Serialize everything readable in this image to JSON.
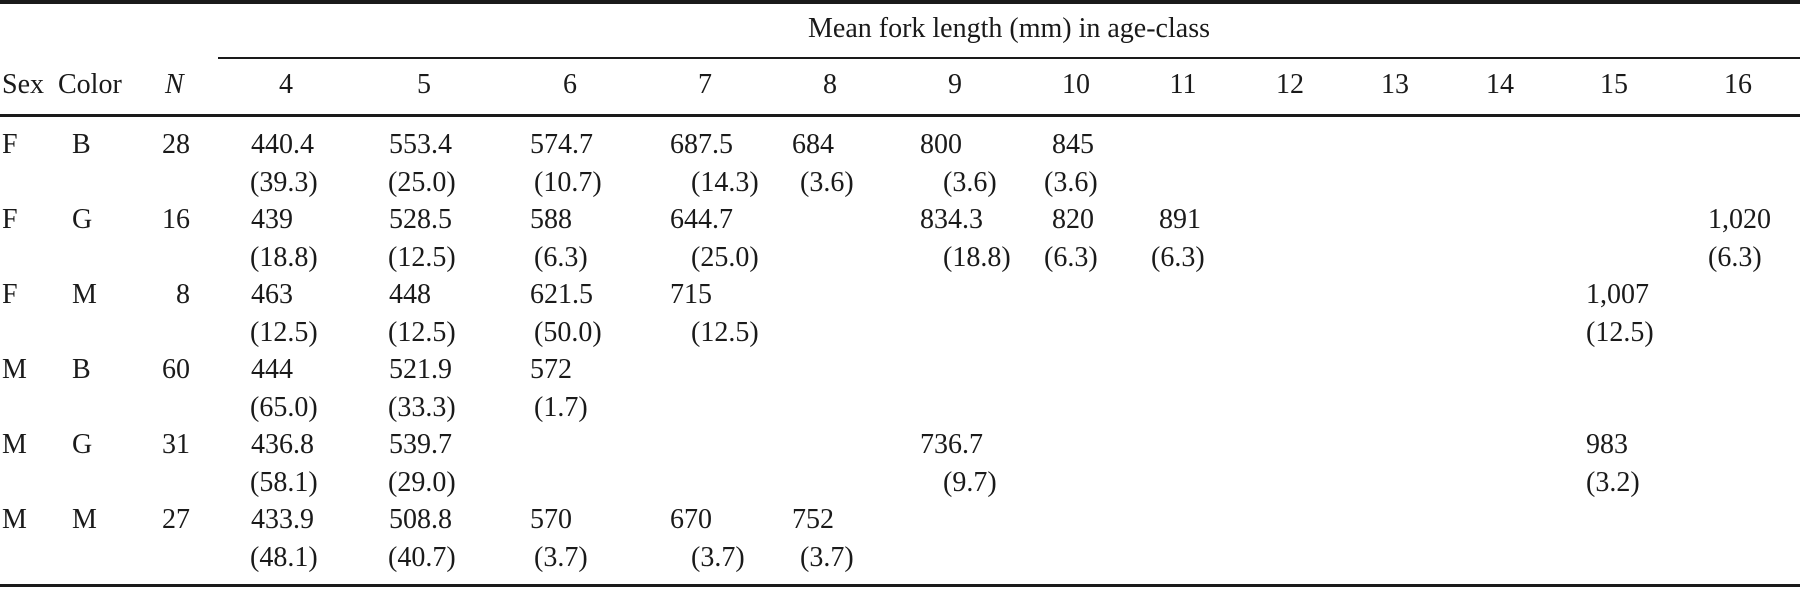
{
  "table": {
    "spanner": "Mean fork length (mm) in age-class",
    "headers": {
      "sex": "Sex",
      "color": "Color",
      "n": "N",
      "ages": [
        "4",
        "5",
        "6",
        "7",
        "8",
        "9",
        "10",
        "11",
        "12",
        "13",
        "14",
        "15",
        "16"
      ]
    },
    "rows": [
      {
        "sex": "F",
        "color": "B",
        "n": "28",
        "cells": [
          {
            "v": "440.4",
            "s": "(39.3)"
          },
          {
            "v": "553.4",
            "s": "(25.0)"
          },
          {
            "v": "574.7",
            "s": "(10.7)"
          },
          {
            "v": "687.5",
            "s": "(14.3)"
          },
          {
            "v": "684",
            "s": "(3.6)"
          },
          {
            "v": "800",
            "s": "(3.6)"
          },
          {
            "v": "845",
            "s": "(3.6)"
          },
          null,
          null,
          null,
          null,
          null,
          null
        ]
      },
      {
        "sex": "F",
        "color": "G",
        "n": "16",
        "cells": [
          {
            "v": "439",
            "s": "(18.8)"
          },
          {
            "v": "528.5",
            "s": "(12.5)"
          },
          {
            "v": "588",
            "s": "(6.3)"
          },
          {
            "v": "644.7",
            "s": "(25.0)"
          },
          null,
          {
            "v": "834.3",
            "s": "(18.8)"
          },
          {
            "v": "820",
            "s": "(6.3)"
          },
          {
            "v": "891",
            "s": "(6.3)"
          },
          null,
          null,
          null,
          null,
          {
            "v": "1,020",
            "s": "(6.3)"
          }
        ]
      },
      {
        "sex": "F",
        "color": "M",
        "n": "8",
        "cells": [
          {
            "v": "463",
            "s": "(12.5)"
          },
          {
            "v": "448",
            "s": "(12.5)"
          },
          {
            "v": "621.5",
            "s": "(50.0)"
          },
          {
            "v": "715",
            "s": "(12.5)"
          },
          null,
          null,
          null,
          null,
          null,
          null,
          null,
          {
            "v": "1,007",
            "s": "(12.5)"
          },
          null
        ]
      },
      {
        "sex": "M",
        "color": "B",
        "n": "60",
        "cells": [
          {
            "v": "444",
            "s": "(65.0)"
          },
          {
            "v": "521.9",
            "s": "(33.3)"
          },
          {
            "v": "572",
            "s": "(1.7)"
          },
          null,
          null,
          null,
          null,
          null,
          null,
          null,
          null,
          null,
          null
        ]
      },
      {
        "sex": "M",
        "color": "G",
        "n": "31",
        "cells": [
          {
            "v": "436.8",
            "s": "(58.1)"
          },
          {
            "v": "539.7",
            "s": "(29.0)"
          },
          null,
          null,
          null,
          {
            "v": "736.7",
            "s": "(9.7)"
          },
          null,
          null,
          null,
          null,
          null,
          {
            "v": "983",
            "s": "(3.2)"
          },
          null
        ]
      },
      {
        "sex": "M",
        "color": "M",
        "n": "27",
        "cells": [
          {
            "v": "433.9",
            "s": "(48.1)"
          },
          {
            "v": "508.8",
            "s": "(40.7)"
          },
          {
            "v": "570",
            "s": "(3.7)"
          },
          {
            "v": "670",
            "s": "(3.7)"
          },
          {
            "v": "752",
            "s": "(3.7)"
          },
          null,
          null,
          null,
          null,
          null,
          null,
          null,
          null
        ]
      }
    ]
  }
}
